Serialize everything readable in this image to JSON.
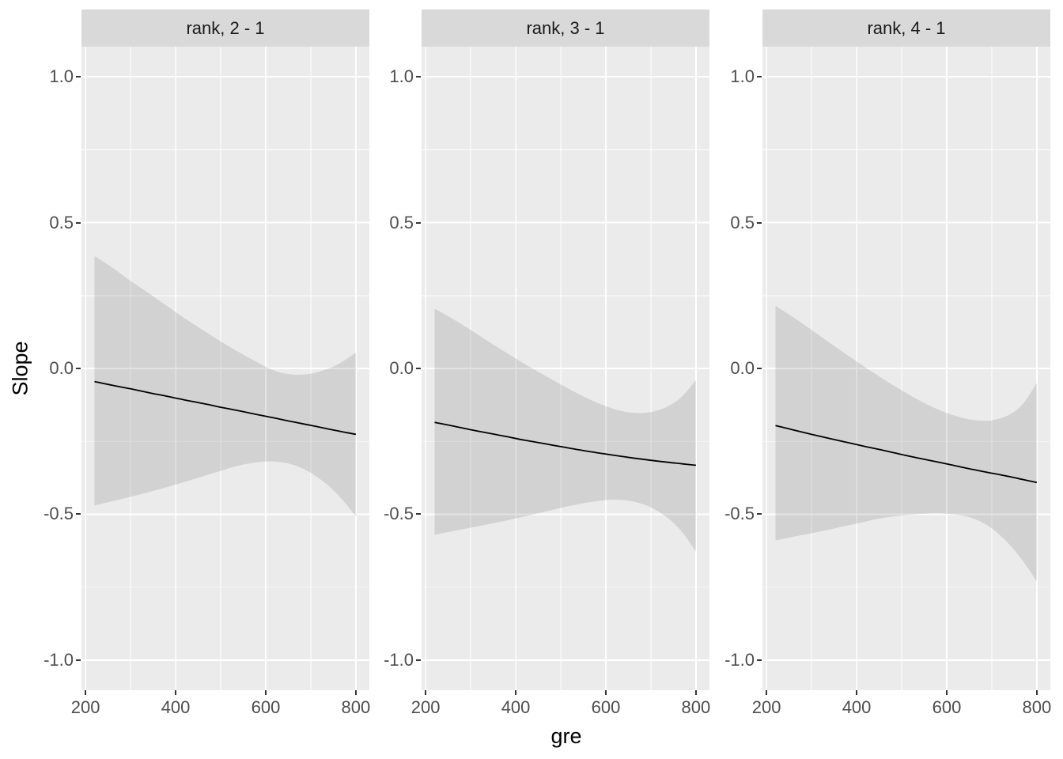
{
  "style": {
    "background": "#FFFFFF",
    "panel_background": "#EBEBEB",
    "strip_background": "#D9D9D9",
    "strip_text_color": "#1A1A1A",
    "grid_color": "#FFFFFF",
    "ribbon_fill": "#666666",
    "ribbon_opacity": 0.18,
    "line_color": "#000000",
    "axis_text_color": "#4D4D4D",
    "axis_title_color": "#000000",
    "tick_color": "#333333"
  },
  "chart_data": {
    "type": "line",
    "title": "",
    "xlabel": "gre",
    "ylabel": "Slope",
    "grid": "major+minor",
    "legend": "none",
    "x_domain": [
      191,
      830
    ],
    "y_domain": [
      -1.103,
      1.103
    ],
    "x_ticks": [
      200,
      400,
      600,
      800
    ],
    "x_tick_labels": [
      "200",
      "400",
      "600",
      "800"
    ],
    "x_minor_breaks": [
      300,
      500,
      700
    ],
    "y_ticks": [
      1.0,
      0.5,
      0.0,
      -0.5,
      -1.0
    ],
    "y_tick_labels": [
      "1.0",
      "0.5",
      "0.0",
      "-0.5",
      "-1.0"
    ],
    "y_minor_breaks": [
      0.75,
      0.25,
      -0.25,
      -0.75
    ],
    "x": [
      220,
      260,
      300,
      340,
      380,
      420,
      460,
      500,
      540,
      580,
      620,
      660,
      700,
      740,
      770,
      800
    ],
    "facets": [
      {
        "label": "rank, 2 - 1",
        "estimate": [
          -0.045,
          -0.058,
          -0.07,
          -0.083,
          -0.095,
          -0.108,
          -0.12,
          -0.133,
          -0.145,
          -0.158,
          -0.17,
          -0.183,
          -0.195,
          -0.208,
          -0.217,
          -0.226
        ],
        "conf_high": [
          0.385,
          0.345,
          0.3,
          0.258,
          0.215,
          0.172,
          0.132,
          0.093,
          0.056,
          0.022,
          -0.008,
          -0.021,
          -0.018,
          0.0,
          0.023,
          0.055
        ],
        "conf_low": [
          -0.47,
          -0.455,
          -0.44,
          -0.424,
          -0.407,
          -0.389,
          -0.37,
          -0.351,
          -0.333,
          -0.322,
          -0.319,
          -0.33,
          -0.358,
          -0.403,
          -0.45,
          -0.507
        ]
      },
      {
        "label": "rank, 3 - 1",
        "estimate": [
          -0.185,
          -0.197,
          -0.21,
          -0.222,
          -0.234,
          -0.246,
          -0.257,
          -0.268,
          -0.279,
          -0.289,
          -0.298,
          -0.307,
          -0.315,
          -0.322,
          -0.327,
          -0.332
        ],
        "conf_high": [
          0.205,
          0.17,
          0.132,
          0.092,
          0.053,
          0.015,
          -0.02,
          -0.055,
          -0.088,
          -0.117,
          -0.14,
          -0.152,
          -0.15,
          -0.128,
          -0.095,
          -0.04
        ],
        "conf_low": [
          -0.57,
          -0.558,
          -0.546,
          -0.534,
          -0.521,
          -0.507,
          -0.493,
          -0.478,
          -0.465,
          -0.455,
          -0.45,
          -0.456,
          -0.476,
          -0.516,
          -0.562,
          -0.628
        ]
      },
      {
        "label": "rank, 4 - 1",
        "estimate": [
          -0.196,
          -0.211,
          -0.226,
          -0.24,
          -0.254,
          -0.268,
          -0.281,
          -0.295,
          -0.308,
          -0.321,
          -0.334,
          -0.347,
          -0.359,
          -0.371,
          -0.381,
          -0.391
        ],
        "conf_high": [
          0.215,
          0.175,
          0.132,
          0.088,
          0.045,
          0.003,
          -0.037,
          -0.075,
          -0.11,
          -0.14,
          -0.163,
          -0.177,
          -0.178,
          -0.158,
          -0.12,
          -0.05
        ],
        "conf_low": [
          -0.59,
          -0.577,
          -0.565,
          -0.552,
          -0.538,
          -0.525,
          -0.512,
          -0.504,
          -0.499,
          -0.497,
          -0.501,
          -0.515,
          -0.548,
          -0.605,
          -0.662,
          -0.73
        ]
      }
    ]
  }
}
